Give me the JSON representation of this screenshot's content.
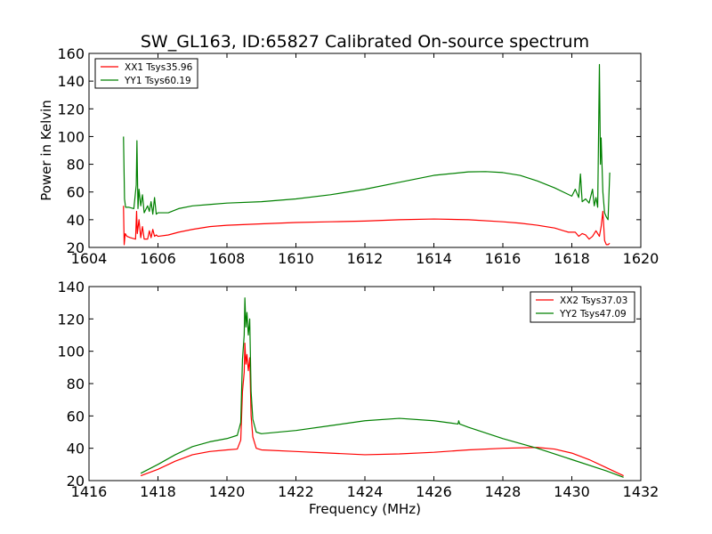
{
  "figure_title": "SW_GL163, ID:65827 Calibrated On-source spectrum",
  "chart_data": [
    {
      "type": "line",
      "xlabel": "",
      "ylabel": "Power in Kelvin",
      "xlim": [
        1604,
        1620
      ],
      "ylim": [
        20,
        160
      ],
      "xticks": [
        1604,
        1606,
        1608,
        1610,
        1612,
        1614,
        1616,
        1618,
        1620
      ],
      "xtick_labels": [
        "1604",
        "1606",
        "1608",
        "1610",
        "1612",
        "1614",
        "1616",
        "1618",
        "1620"
      ],
      "yticks": [
        20,
        40,
        60,
        80,
        100,
        120,
        140,
        160
      ],
      "ytick_labels": [
        "20",
        "40",
        "60",
        "80",
        "100",
        "120",
        "140",
        "160"
      ],
      "grid": false,
      "legend_position": "upper-left",
      "series": [
        {
          "name": "XX1 Tsys35.96",
          "color": "#ff0000",
          "points": [
            [
              1605.0,
              50
            ],
            [
              1605.02,
              22
            ],
            [
              1605.05,
              30
            ],
            [
              1605.1,
              28
            ],
            [
              1605.2,
              27
            ],
            [
              1605.35,
              26
            ],
            [
              1605.38,
              46
            ],
            [
              1605.4,
              30
            ],
            [
              1605.45,
              40
            ],
            [
              1605.5,
              27
            ],
            [
              1605.55,
              35
            ],
            [
              1605.6,
              26
            ],
            [
              1605.7,
              26
            ],
            [
              1605.75,
              32
            ],
            [
              1605.8,
              27
            ],
            [
              1605.85,
              33
            ],
            [
              1605.9,
              28
            ],
            [
              1605.95,
              29
            ],
            [
              1606.0,
              28
            ],
            [
              1606.3,
              29
            ],
            [
              1606.6,
              31
            ],
            [
              1607.0,
              33
            ],
            [
              1607.5,
              35
            ],
            [
              1608.0,
              36
            ],
            [
              1609.0,
              37
            ],
            [
              1610.0,
              38
            ],
            [
              1611.0,
              38.5
            ],
            [
              1612.0,
              39
            ],
            [
              1613.0,
              40
            ],
            [
              1614.0,
              40.5
            ],
            [
              1615.0,
              40
            ],
            [
              1616.0,
              38.5
            ],
            [
              1616.5,
              37.5
            ],
            [
              1617.0,
              36
            ],
            [
              1617.5,
              34
            ],
            [
              1617.9,
              31
            ],
            [
              1618.1,
              31
            ],
            [
              1618.2,
              28
            ],
            [
              1618.3,
              30
            ],
            [
              1618.4,
              29
            ],
            [
              1618.5,
              26
            ],
            [
              1618.6,
              28
            ],
            [
              1618.7,
              32
            ],
            [
              1618.8,
              28
            ],
            [
              1618.85,
              35
            ],
            [
              1618.9,
              46
            ],
            [
              1618.95,
              25
            ],
            [
              1619.0,
              22
            ],
            [
              1619.05,
              22
            ],
            [
              1619.1,
              23
            ]
          ]
        },
        {
          "name": "YY1 Tsys60.19",
          "color": "#008000",
          "points": [
            [
              1605.0,
              100
            ],
            [
              1605.03,
              55
            ],
            [
              1605.06,
              49
            ],
            [
              1605.15,
              49
            ],
            [
              1605.3,
              48
            ],
            [
              1605.37,
              65
            ],
            [
              1605.39,
              97
            ],
            [
              1605.42,
              48
            ],
            [
              1605.45,
              62
            ],
            [
              1605.5,
              50
            ],
            [
              1605.55,
              58
            ],
            [
              1605.6,
              45
            ],
            [
              1605.7,
              50
            ],
            [
              1605.75,
              46
            ],
            [
              1605.8,
              53
            ],
            [
              1605.85,
              44
            ],
            [
              1605.9,
              56
            ],
            [
              1605.95,
              44
            ],
            [
              1606.0,
              45
            ],
            [
              1606.3,
              45
            ],
            [
              1606.6,
              48
            ],
            [
              1607.0,
              50
            ],
            [
              1607.5,
              51
            ],
            [
              1608.0,
              52
            ],
            [
              1609.0,
              53
            ],
            [
              1610.0,
              55
            ],
            [
              1611.0,
              58
            ],
            [
              1612.0,
              62
            ],
            [
              1613.0,
              67
            ],
            [
              1614.0,
              72
            ],
            [
              1615.0,
              74.5
            ],
            [
              1615.5,
              74.7
            ],
            [
              1616.0,
              74
            ],
            [
              1616.5,
              72
            ],
            [
              1617.0,
              68
            ],
            [
              1617.5,
              63
            ],
            [
              1618.0,
              57
            ],
            [
              1618.1,
              62
            ],
            [
              1618.2,
              56
            ],
            [
              1618.25,
              73
            ],
            [
              1618.3,
              53
            ],
            [
              1618.4,
              55
            ],
            [
              1618.5,
              52
            ],
            [
              1618.6,
              62
            ],
            [
              1618.65,
              50
            ],
            [
              1618.7,
              56
            ],
            [
              1618.75,
              49
            ],
            [
              1618.8,
              152
            ],
            [
              1618.83,
              80
            ],
            [
              1618.85,
              99
            ],
            [
              1618.9,
              60
            ],
            [
              1618.95,
              45
            ],
            [
              1619.0,
              42
            ],
            [
              1619.05,
              40
            ],
            [
              1619.1,
              74
            ]
          ]
        }
      ]
    },
    {
      "type": "line",
      "xlabel": "Frequency (MHz)",
      "ylabel": "",
      "xlim": [
        1416,
        1432
      ],
      "ylim": [
        20,
        140
      ],
      "xticks": [
        1416,
        1418,
        1420,
        1422,
        1424,
        1426,
        1428,
        1430,
        1432
      ],
      "xtick_labels": [
        "1416",
        "1418",
        "1420",
        "1422",
        "1424",
        "1426",
        "1428",
        "1430",
        "1432"
      ],
      "yticks": [
        20,
        40,
        60,
        80,
        100,
        120,
        140
      ],
      "ytick_labels": [
        "20",
        "40",
        "60",
        "80",
        "100",
        "120",
        "140"
      ],
      "grid": false,
      "legend_position": "upper-right",
      "series": [
        {
          "name": "XX2 Tsys37.03",
          "color": "#ff0000",
          "points": [
            [
              1417.5,
              23
            ],
            [
              1418.0,
              27
            ],
            [
              1418.5,
              32
            ],
            [
              1419.0,
              36
            ],
            [
              1419.5,
              38
            ],
            [
              1420.0,
              39
            ],
            [
              1420.3,
              39.5
            ],
            [
              1420.4,
              45
            ],
            [
              1420.45,
              75
            ],
            [
              1420.5,
              87
            ],
            [
              1420.52,
              105
            ],
            [
              1420.55,
              92
            ],
            [
              1420.58,
              98
            ],
            [
              1420.62,
              88
            ],
            [
              1420.66,
              96
            ],
            [
              1420.7,
              60
            ],
            [
              1420.75,
              47
            ],
            [
              1420.85,
              40
            ],
            [
              1421.0,
              39
            ],
            [
              1422.0,
              38
            ],
            [
              1423.0,
              37
            ],
            [
              1424.0,
              36
            ],
            [
              1425.0,
              36.5
            ],
            [
              1426.0,
              37.5
            ],
            [
              1427.0,
              39
            ],
            [
              1428.0,
              40
            ],
            [
              1429.0,
              40.5
            ],
            [
              1429.5,
              39.5
            ],
            [
              1430.0,
              37
            ],
            [
              1430.5,
              33
            ],
            [
              1431.0,
              28
            ],
            [
              1431.5,
              23
            ]
          ]
        },
        {
          "name": "YY2 Tsys47.09",
          "color": "#008000",
          "points": [
            [
              1417.5,
              24.5
            ],
            [
              1418.0,
              30
            ],
            [
              1418.5,
              36
            ],
            [
              1419.0,
              41
            ],
            [
              1419.5,
              44
            ],
            [
              1420.0,
              46
            ],
            [
              1420.3,
              48
            ],
            [
              1420.4,
              56
            ],
            [
              1420.45,
              95
            ],
            [
              1420.5,
              110
            ],
            [
              1420.52,
              133
            ],
            [
              1420.55,
              115
            ],
            [
              1420.58,
              124
            ],
            [
              1420.62,
              110
            ],
            [
              1420.66,
              120
            ],
            [
              1420.7,
              75
            ],
            [
              1420.75,
              58
            ],
            [
              1420.85,
              50
            ],
            [
              1421.0,
              49
            ],
            [
              1422.0,
              51
            ],
            [
              1423.0,
              54
            ],
            [
              1424.0,
              57
            ],
            [
              1425.0,
              58.5
            ],
            [
              1426.0,
              57
            ],
            [
              1426.7,
              55
            ],
            [
              1426.72,
              57
            ],
            [
              1426.75,
              55
            ],
            [
              1427.0,
              53
            ],
            [
              1428.0,
              46
            ],
            [
              1429.0,
              40
            ],
            [
              1430.0,
              33
            ],
            [
              1431.0,
              26
            ],
            [
              1431.5,
              22
            ]
          ]
        }
      ]
    }
  ]
}
